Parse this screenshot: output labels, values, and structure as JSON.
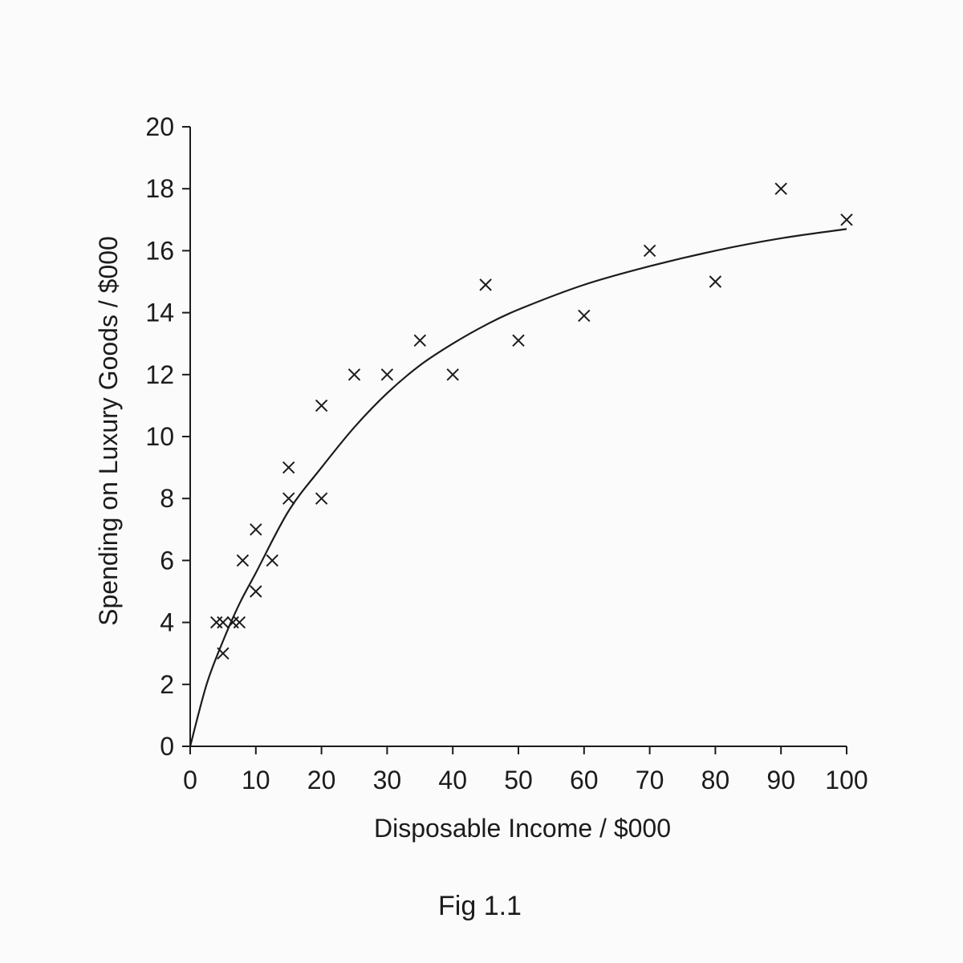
{
  "chart_data": {
    "type": "scatter",
    "xlabel": "Disposable Income / $000",
    "ylabel": "Spending on Luxury Goods / $000",
    "caption": "Fig 1.1",
    "xlim": [
      0,
      100
    ],
    "ylim": [
      0,
      20
    ],
    "x_ticks": [
      "0",
      "10",
      "20",
      "30",
      "40",
      "50",
      "60",
      "70",
      "80",
      "90",
      "100"
    ],
    "y_ticks": [
      "0",
      "2",
      "4",
      "6",
      "8",
      "10",
      "12",
      "14",
      "16",
      "18",
      "20"
    ],
    "grid": false,
    "legend": "none",
    "marker": "cross",
    "series": [
      {
        "points": [
          [
            4,
            4
          ],
          [
            5,
            3
          ],
          [
            5,
            4
          ],
          [
            6.5,
            4
          ],
          [
            7.5,
            4
          ],
          [
            8,
            6
          ],
          [
            10,
            5
          ],
          [
            10,
            7
          ],
          [
            12.5,
            6
          ],
          [
            15,
            8
          ],
          [
            15,
            9
          ],
          [
            20,
            8
          ],
          [
            20,
            11
          ],
          [
            25,
            12
          ],
          [
            30,
            12
          ],
          [
            35,
            13.1
          ],
          [
            40,
            12
          ],
          [
            45,
            14.9
          ],
          [
            50,
            13.1
          ],
          [
            60,
            13.9
          ],
          [
            70,
            16
          ],
          [
            80,
            15
          ],
          [
            90,
            18
          ],
          [
            100,
            17
          ]
        ]
      }
    ],
    "trend_curve": [
      [
        0,
        0
      ],
      [
        2.5,
        2.0
      ],
      [
        5,
        3.4
      ],
      [
        7.5,
        4.6
      ],
      [
        10,
        5.6
      ],
      [
        15,
        7.6
      ],
      [
        20,
        9.0
      ],
      [
        25,
        10.3
      ],
      [
        30,
        11.4
      ],
      [
        35,
        12.3
      ],
      [
        40,
        13.0
      ],
      [
        45,
        13.6
      ],
      [
        50,
        14.1
      ],
      [
        60,
        14.9
      ],
      [
        70,
        15.5
      ],
      [
        80,
        16.0
      ],
      [
        90,
        16.4
      ],
      [
        100,
        16.7
      ]
    ],
    "colors": {
      "ink": "#1c1c1c",
      "background": "#fbfbfb"
    }
  }
}
